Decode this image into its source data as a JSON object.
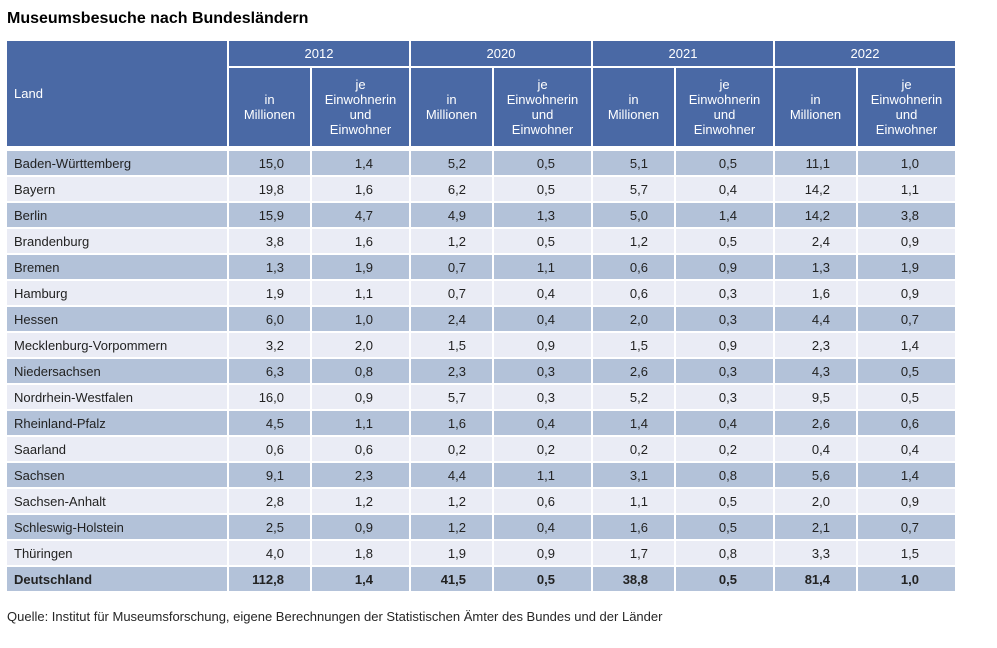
{
  "page": {
    "title": "Museumsbesuche nach Bundesländern",
    "source": "Quelle: Institut für Museumsforschung, eigene Berechnungen der Statistischen Ämter des Bundes und der Länder"
  },
  "colors": {
    "header_bg": "#4a69a5",
    "row_dark": "#b3c2d9",
    "row_light": "#eaecf5",
    "header_text": "#ffffff",
    "body_text": "#222222"
  },
  "chart_data": {
    "type": "table",
    "title": "Museumsbesuche nach Bundesländern",
    "corner_label": "Land",
    "years": [
      "2012",
      "2020",
      "2021",
      "2022"
    ],
    "sub_headers": [
      "in\nMillionen",
      "je\nEinwohnerin\nund\nEinwohner"
    ],
    "columns": [
      "Land",
      "2012 in Millionen",
      "2012 je Einwohnerin und Einwohner",
      "2020 in Millionen",
      "2020 je Einwohnerin und Einwohner",
      "2021 in Millionen",
      "2021 je Einwohnerin und Einwohner",
      "2022 in Millionen",
      "2022 je Einwohnerin und Einwohner"
    ],
    "rows": [
      {
        "land": "Baden-Württemberg",
        "values": [
          "15,0",
          "1,4",
          "5,2",
          "0,5",
          "5,1",
          "0,5",
          "11,1",
          "1,0"
        ]
      },
      {
        "land": "Bayern",
        "values": [
          "19,8",
          "1,6",
          "6,2",
          "0,5",
          "5,7",
          "0,4",
          "14,2",
          "1,1"
        ]
      },
      {
        "land": "Berlin",
        "values": [
          "15,9",
          "4,7",
          "4,9",
          "1,3",
          "5,0",
          "1,4",
          "14,2",
          "3,8"
        ]
      },
      {
        "land": "Brandenburg",
        "values": [
          "3,8",
          "1,6",
          "1,2",
          "0,5",
          "1,2",
          "0,5",
          "2,4",
          "0,9"
        ]
      },
      {
        "land": "Bremen",
        "values": [
          "1,3",
          "1,9",
          "0,7",
          "1,1",
          "0,6",
          "0,9",
          "1,3",
          "1,9"
        ]
      },
      {
        "land": "Hamburg",
        "values": [
          "1,9",
          "1,1",
          "0,7",
          "0,4",
          "0,6",
          "0,3",
          "1,6",
          "0,9"
        ]
      },
      {
        "land": "Hessen",
        "values": [
          "6,0",
          "1,0",
          "2,4",
          "0,4",
          "2,0",
          "0,3",
          "4,4",
          "0,7"
        ]
      },
      {
        "land": "Mecklenburg-Vorpommern",
        "values": [
          "3,2",
          "2,0",
          "1,5",
          "0,9",
          "1,5",
          "0,9",
          "2,3",
          "1,4"
        ]
      },
      {
        "land": "Niedersachsen",
        "values": [
          "6,3",
          "0,8",
          "2,3",
          "0,3",
          "2,6",
          "0,3",
          "4,3",
          "0,5"
        ]
      },
      {
        "land": "Nordrhein-Westfalen",
        "values": [
          "16,0",
          "0,9",
          "5,7",
          "0,3",
          "5,2",
          "0,3",
          "9,5",
          "0,5"
        ]
      },
      {
        "land": "Rheinland-Pfalz",
        "values": [
          "4,5",
          "1,1",
          "1,6",
          "0,4",
          "1,4",
          "0,4",
          "2,6",
          "0,6"
        ]
      },
      {
        "land": "Saarland",
        "values": [
          "0,6",
          "0,6",
          "0,2",
          "0,2",
          "0,2",
          "0,2",
          "0,4",
          "0,4"
        ]
      },
      {
        "land": "Sachsen",
        "values": [
          "9,1",
          "2,3",
          "4,4",
          "1,1",
          "3,1",
          "0,8",
          "5,6",
          "1,4"
        ]
      },
      {
        "land": "Sachsen-Anhalt",
        "values": [
          "2,8",
          "1,2",
          "1,2",
          "0,6",
          "1,1",
          "0,5",
          "2,0",
          "0,9"
        ]
      },
      {
        "land": "Schleswig-Holstein",
        "values": [
          "2,5",
          "0,9",
          "1,2",
          "0,4",
          "1,6",
          "0,5",
          "2,1",
          "0,7"
        ]
      },
      {
        "land": "Thüringen",
        "values": [
          "4,0",
          "1,8",
          "1,9",
          "0,9",
          "1,7",
          "0,8",
          "3,3",
          "1,5"
        ]
      },
      {
        "land": "Deutschland",
        "values": [
          "112,8",
          "1,4",
          "41,5",
          "0,5",
          "38,8",
          "0,5",
          "81,4",
          "1,0"
        ],
        "bold": true
      }
    ]
  }
}
